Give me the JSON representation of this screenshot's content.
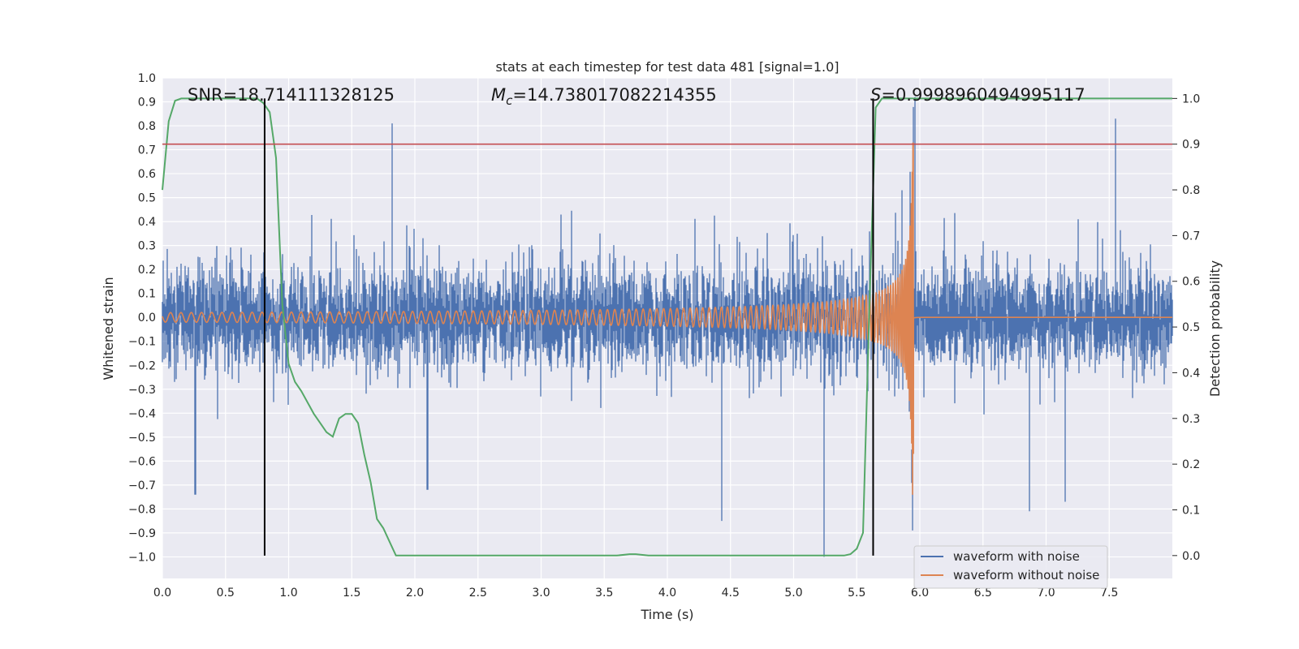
{
  "chart_data": {
    "type": "line",
    "title": "stats at each timestep for test data 481 [signal=1.0]",
    "xlabel": "Time (s)",
    "ylabel": "Whitened strain",
    "y2label": "Detection probability",
    "xlim": [
      0.0,
      8.0
    ],
    "ylim": [
      -1.09,
      1.0
    ],
    "y2lim": [
      -0.05,
      1.045
    ],
    "x_ticks": [
      "0.0",
      "0.5",
      "1.0",
      "1.5",
      "2.0",
      "2.5",
      "3.0",
      "3.5",
      "4.0",
      "4.5",
      "5.0",
      "5.5",
      "6.0",
      "6.5",
      "7.0",
      "7.5"
    ],
    "y_ticks": [
      "1.0",
      "0.9",
      "0.8",
      "0.7",
      "0.6",
      "0.5",
      "0.4",
      "0.3",
      "0.2",
      "0.1",
      "0.0",
      "−0.1",
      "−0.2",
      "−0.3",
      "−0.4",
      "−0.5",
      "−0.6",
      "−0.7",
      "−0.8",
      "−0.9",
      "−1.0"
    ],
    "y2_ticks": [
      "1.0",
      "0.9",
      "0.8",
      "0.7",
      "0.6",
      "0.5",
      "0.4",
      "0.3",
      "0.2",
      "0.1",
      "0.0"
    ],
    "annotations": {
      "snr": "SNR=18.714111328125",
      "mc_symbol": "M",
      "mc_sub": "c",
      "mc_value": "=14.738017082214355",
      "s_symbol": "S",
      "s_value": "=0.9998960494995117"
    },
    "threshold": 0.9,
    "detection_window": [
      0.81,
      5.63
    ],
    "merger_time": 5.95,
    "grid": true,
    "legend_position": "lower-right",
    "series": [
      {
        "name": "waveform with noise",
        "color": "#4c72b0",
        "description_kind": "noisy whitened strain",
        "noise_amplitude": 0.18,
        "peaks": [
          {
            "t": 1.82,
            "v": 0.81
          },
          {
            "t": 7.55,
            "v": 0.83
          },
          {
            "t": 5.96,
            "v": 0.92
          },
          {
            "t": 5.24,
            "v": -1.0
          },
          {
            "t": 6.87,
            "v": -0.81
          },
          {
            "t": 4.43,
            "v": -0.85
          },
          {
            "t": 0.26,
            "v": -0.74
          },
          {
            "t": 2.1,
            "v": -0.72
          },
          {
            "t": 7.15,
            "v": -0.77
          }
        ]
      },
      {
        "name": "waveform without noise",
        "color": "#dd8452",
        "description_kind": "chirp",
        "start_amplitude": 0.02,
        "peak_amplitude": 0.73,
        "trough_amplitude": -0.57
      },
      {
        "name": "detection probability",
        "color": "#55a868",
        "axis": "right",
        "x": [
          0.0,
          0.05,
          0.1,
          0.15,
          0.2,
          0.4,
          0.6,
          0.75,
          0.8,
          0.85,
          0.9,
          0.95,
          1.0,
          1.05,
          1.1,
          1.2,
          1.25,
          1.3,
          1.35,
          1.4,
          1.45,
          1.5,
          1.55,
          1.6,
          1.65,
          1.7,
          1.75,
          1.8,
          1.85,
          1.9,
          2.0,
          3.0,
          3.6,
          3.7,
          3.75,
          3.85,
          4.0,
          5.0,
          5.4,
          5.45,
          5.5,
          5.55,
          5.6,
          5.65,
          5.7,
          5.8,
          6.0,
          7.0,
          8.0
        ],
        "y": [
          0.8,
          0.95,
          0.995,
          1.0,
          1.0,
          1.0,
          1.0,
          1.0,
          0.99,
          0.97,
          0.87,
          0.55,
          0.42,
          0.38,
          0.36,
          0.31,
          0.29,
          0.27,
          0.26,
          0.3,
          0.31,
          0.31,
          0.29,
          0.22,
          0.16,
          0.08,
          0.06,
          0.03,
          0.0,
          0.0,
          0.0,
          0.0,
          0.0,
          0.003,
          0.003,
          0.0,
          0.0,
          0.0,
          0.0,
          0.003,
          0.015,
          0.05,
          0.54,
          0.98,
          1.0,
          1.0,
          1.0,
          1.0,
          1.0
        ]
      }
    ],
    "threshold_color": "#c44e52",
    "window_color": "#000000"
  }
}
